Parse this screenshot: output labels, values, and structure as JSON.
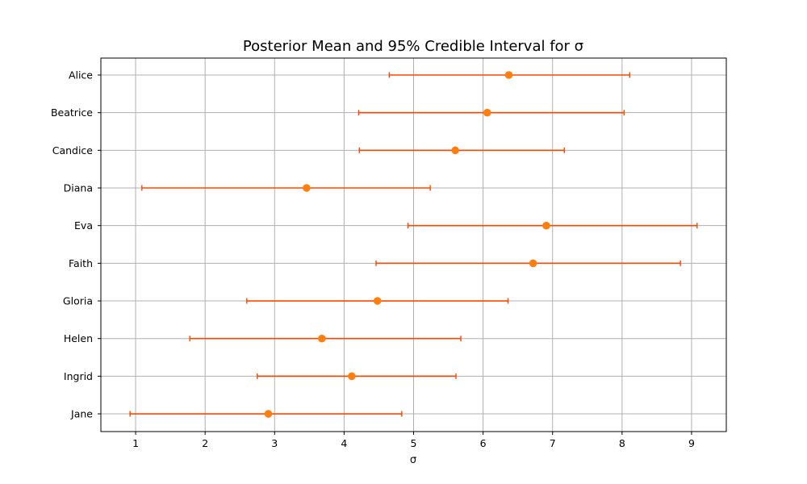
{
  "chart_data": {
    "type": "scatter",
    "title": "Posterior Mean and 95% Credible Interval for σ",
    "xlabel": "σ",
    "ylabel": "",
    "xlim": [
      0.5,
      9.5
    ],
    "xticks": [
      1,
      2,
      3,
      4,
      5,
      6,
      7,
      8,
      9
    ],
    "grid": true,
    "categories": [
      "Alice",
      "Beatrice",
      "Candice",
      "Diana",
      "Eva",
      "Faith",
      "Gloria",
      "Helen",
      "Ingrid",
      "Jane"
    ],
    "means": [
      6.37,
      6.06,
      5.6,
      3.46,
      6.91,
      6.72,
      4.48,
      3.68,
      4.11,
      2.91
    ],
    "lower": [
      4.65,
      4.21,
      4.22,
      1.09,
      4.92,
      4.46,
      2.6,
      1.78,
      2.75,
      0.92
    ],
    "upper": [
      8.11,
      8.03,
      7.17,
      5.24,
      9.08,
      8.84,
      6.36,
      5.68,
      5.61,
      4.83
    ],
    "colors": {
      "point": "#ff7f0e",
      "errorbar": "#ff4500"
    }
  }
}
